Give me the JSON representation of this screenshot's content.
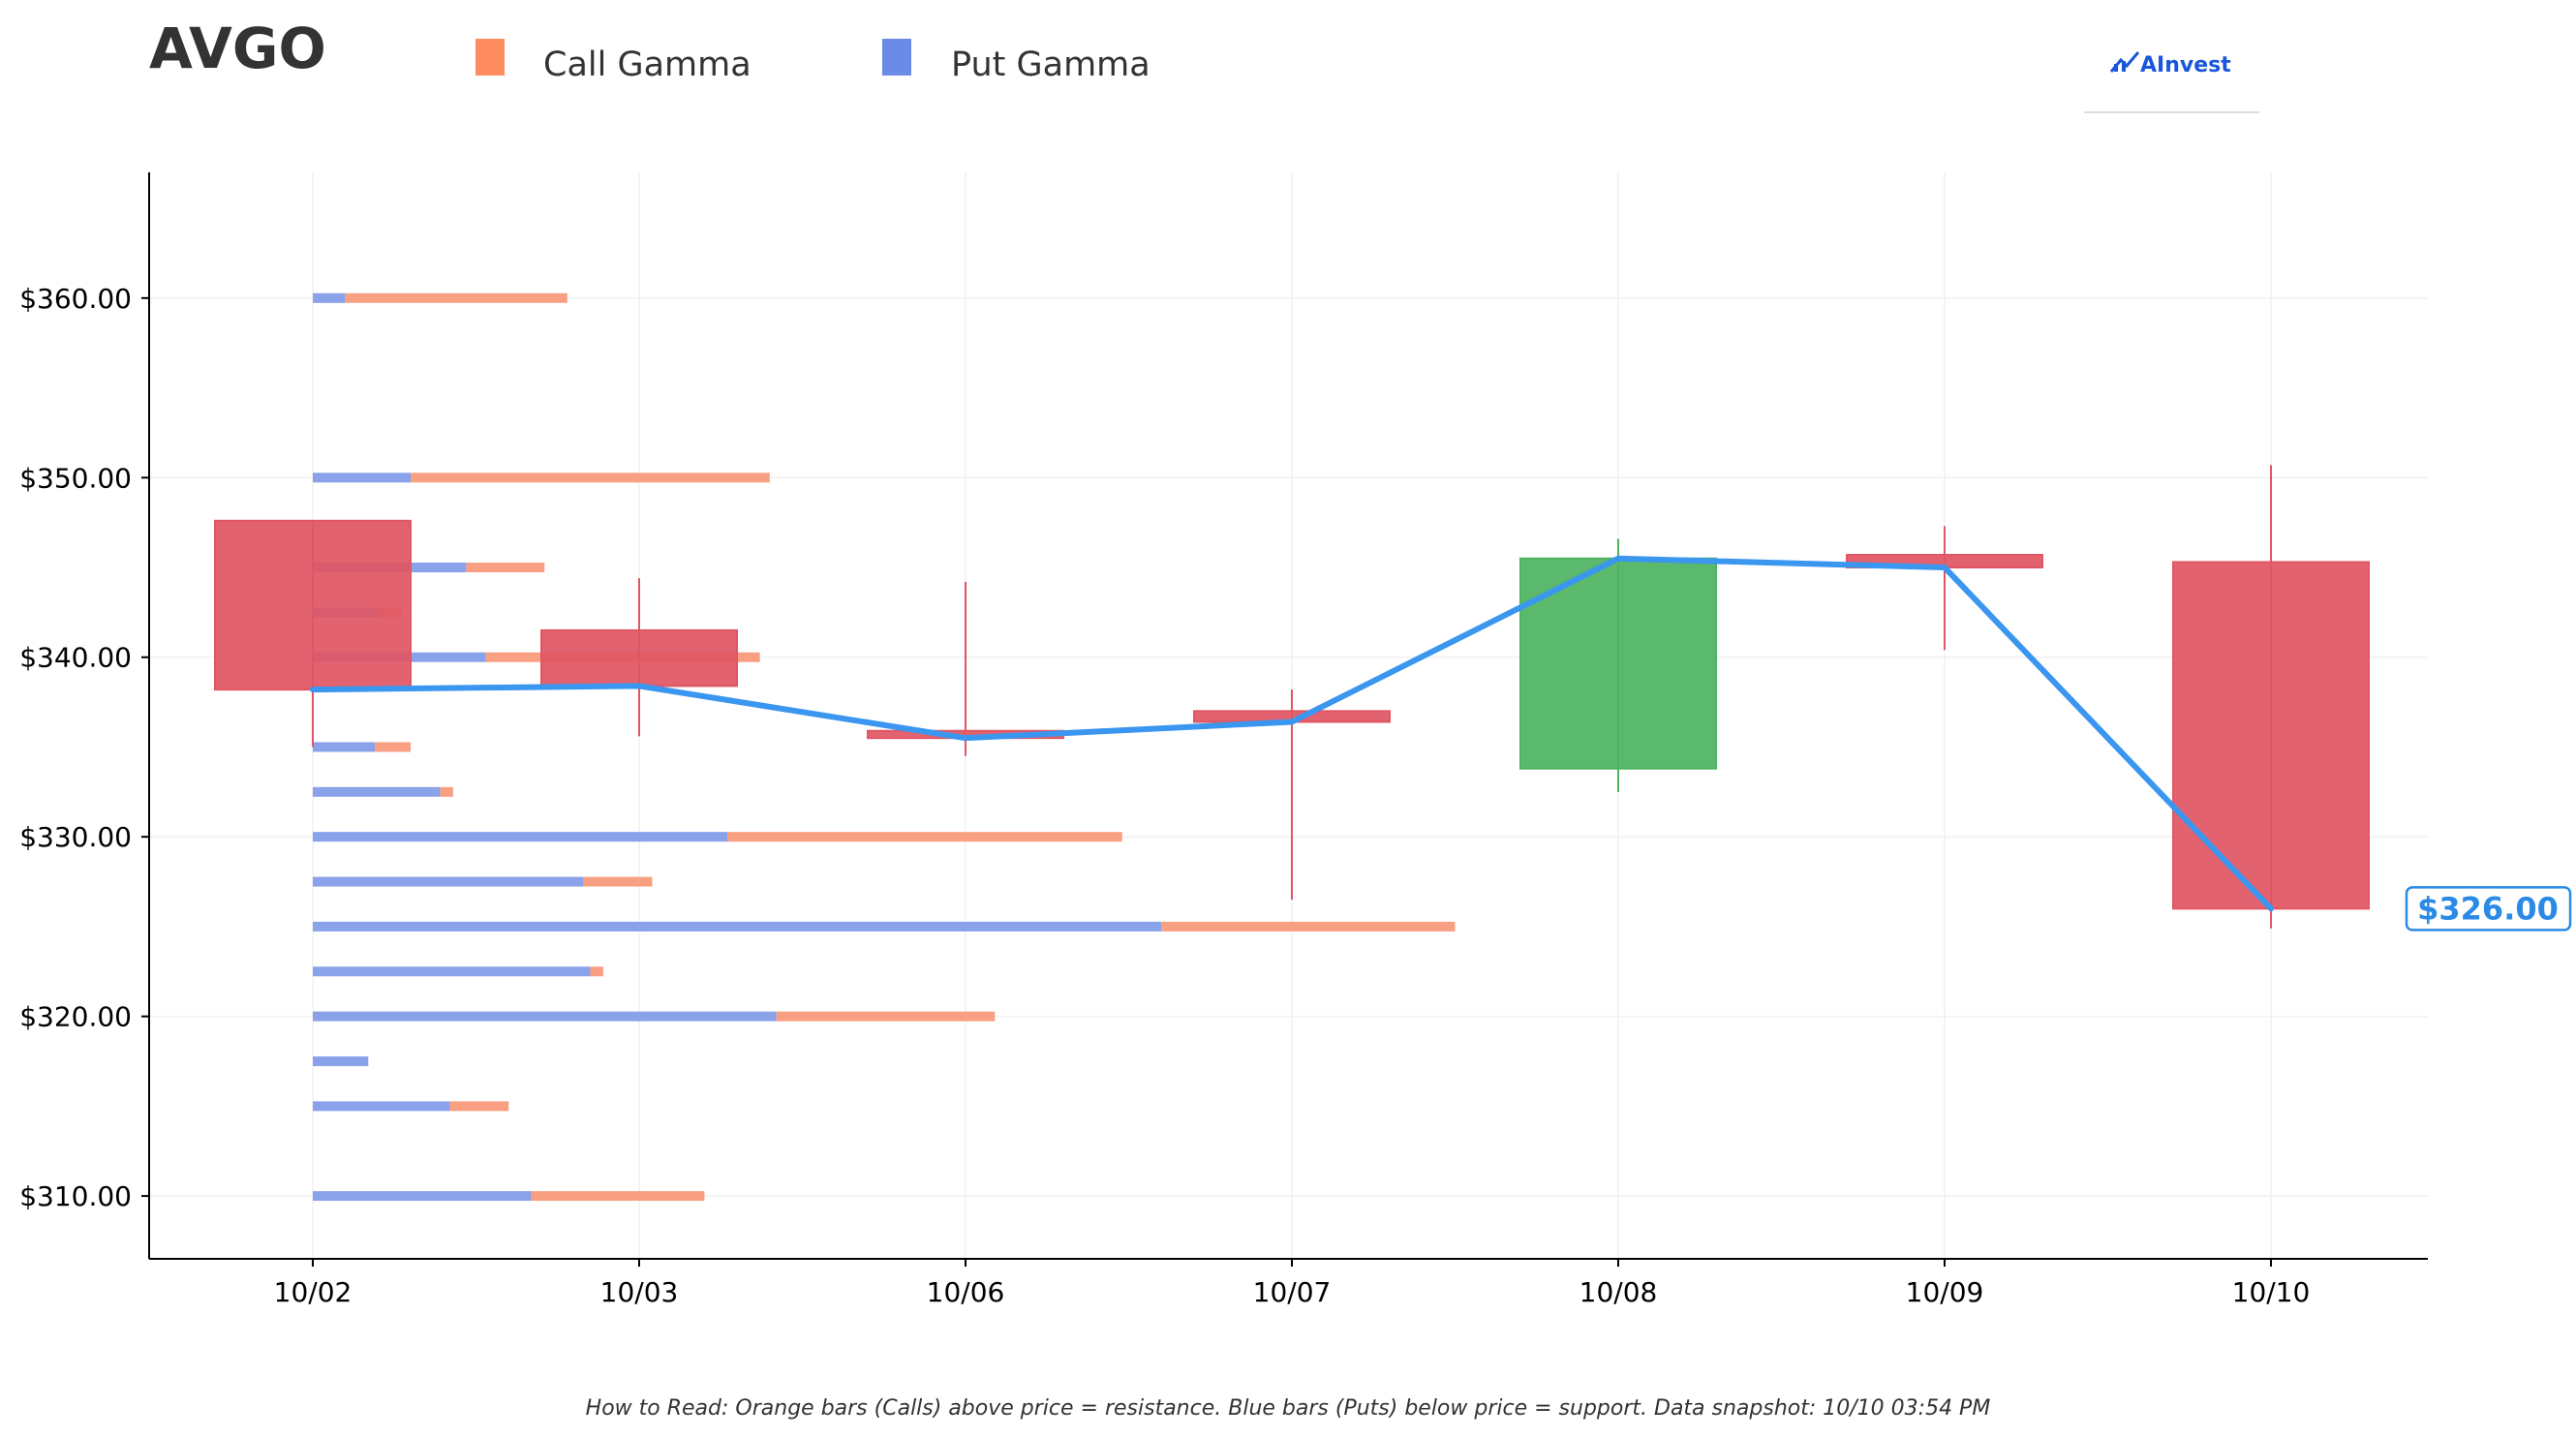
{
  "ticker": "AVGO",
  "legend": [
    {
      "label": "Call Gamma",
      "color": "#ff8c5f"
    },
    {
      "label": "Put Gamma",
      "color": "#6b8be6"
    }
  ],
  "logo": {
    "text": "AInvest"
  },
  "current_price_label": "$326.00",
  "footnote": "How to Read: Orange bars (Calls) above price = resistance. Blue bars (Puts) below price = support. Data snapshot: 10/10 03:54 PM",
  "colors": {
    "up": "#4cb35f",
    "down": "#e05663",
    "price_line": "#3a96ef",
    "call": "#f9a083",
    "put": "#8aa2ea"
  },
  "chart_data": {
    "type": "candlestick",
    "title": "AVGO",
    "categories": [
      "10/02",
      "10/03",
      "10/06",
      "10/07",
      "10/08",
      "10/09",
      "10/10"
    ],
    "ylim": [
      306.5,
      367.0
    ],
    "y_ticks": [
      {
        "value": 310,
        "label": "$310.00"
      },
      {
        "value": 320,
        "label": "$320.00"
      },
      {
        "value": 330,
        "label": "$330.00"
      },
      {
        "value": 340,
        "label": "$340.00"
      },
      {
        "value": 350,
        "label": "$350.00"
      },
      {
        "value": 360,
        "label": "$360.00"
      }
    ],
    "grid": true,
    "candles": [
      {
        "date": "10/02",
        "open": 347.6,
        "close": 338.2,
        "high": 347.6,
        "low": 335.0
      },
      {
        "date": "10/03",
        "open": 341.5,
        "close": 338.4,
        "high": 344.4,
        "low": 335.6
      },
      {
        "date": "10/06",
        "open": 335.9,
        "close": 335.5,
        "high": 344.2,
        "low": 334.5
      },
      {
        "date": "10/07",
        "open": 337.0,
        "close": 336.4,
        "high": 338.2,
        "low": 326.5
      },
      {
        "date": "10/08",
        "open": 333.8,
        "close": 345.5,
        "high": 346.6,
        "low": 332.5
      },
      {
        "date": "10/09",
        "open": 345.7,
        "close": 345.0,
        "high": 347.3,
        "low": 340.4
      },
      {
        "date": "10/10",
        "open": 345.3,
        "close": 326.0,
        "high": 350.7,
        "low": 324.9
      }
    ],
    "price_line": [
      338.2,
      338.4,
      335.5,
      336.4,
      345.5,
      345.0,
      326.0
    ],
    "gamma_unit": "date-index",
    "gamma_levels": [
      {
        "strike": 360.0,
        "put": 0.1,
        "call": 0.68
      },
      {
        "strike": 350.0,
        "put": 0.3,
        "call": 1.1
      },
      {
        "strike": 345.0,
        "put": 0.47,
        "call": 0.24
      },
      {
        "strike": 342.5,
        "put": 0.2,
        "call": 0.07
      },
      {
        "strike": 340.0,
        "put": 0.53,
        "call": 0.84
      },
      {
        "strike": 335.0,
        "put": 0.19,
        "call": 0.11
      },
      {
        "strike": 332.5,
        "put": 0.39,
        "call": 0.04
      },
      {
        "strike": 330.0,
        "put": 1.27,
        "call": 1.21
      },
      {
        "strike": 327.5,
        "put": 0.83,
        "call": 0.21
      },
      {
        "strike": 325.0,
        "put": 2.6,
        "call": 0.9
      },
      {
        "strike": 322.5,
        "put": 0.85,
        "call": 0.04
      },
      {
        "strike": 320.0,
        "put": 1.42,
        "call": 0.67
      },
      {
        "strike": 317.5,
        "put": 0.17,
        "call": 0.0
      },
      {
        "strike": 315.0,
        "put": 0.42,
        "call": 0.18
      },
      {
        "strike": 310.0,
        "put": 0.67,
        "call": 0.53
      }
    ]
  }
}
